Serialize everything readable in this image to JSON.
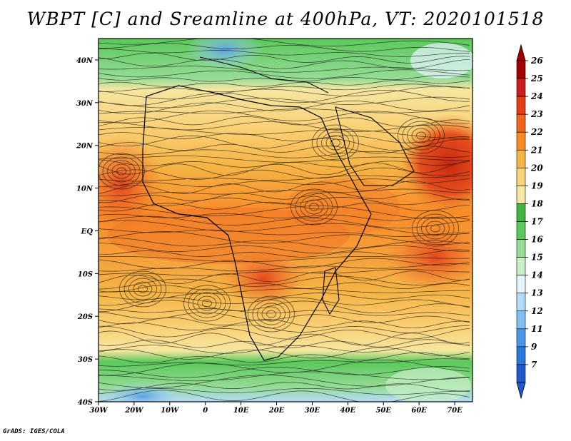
{
  "title": "WBPT [C] and Sreamline at 400hPa, VT: 2020101518",
  "credit": "GrADS: IGES/COLA",
  "map": {
    "lat_labels": [
      "40N",
      "30N",
      "20N",
      "10N",
      "EQ",
      "10S",
      "20S",
      "30S",
      "40S"
    ],
    "lon_labels": [
      "30W",
      "20W",
      "10W",
      "0",
      "10E",
      "20E",
      "30E",
      "40E",
      "50E",
      "60E",
      "70E"
    ],
    "lat_range": [
      -40,
      45
    ],
    "lon_range": [
      -30,
      75
    ]
  },
  "colorbar": {
    "labels": [
      "26",
      "25",
      "24",
      "23",
      "22",
      "21",
      "20",
      "19",
      "18",
      "17",
      "16",
      "15",
      "14",
      "13",
      "12",
      "11",
      "9",
      "7"
    ],
    "colors": [
      "#a00000",
      "#c81e1e",
      "#e63c14",
      "#f0641e",
      "#fa8c28",
      "#f5b446",
      "#fad278",
      "#f5e6a0",
      "#41b441",
      "#5ac85a",
      "#96dc96",
      "#c8f0c8",
      "#e6f5ff",
      "#b4dcfa",
      "#82bef0",
      "#4b96e6",
      "#2878dc",
      "#1e5ac8"
    ]
  }
}
